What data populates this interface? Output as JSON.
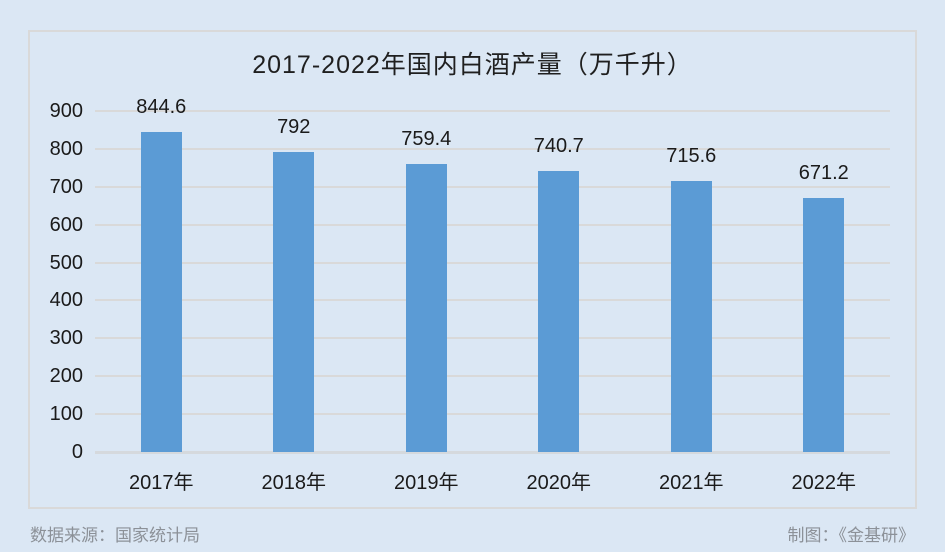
{
  "page": {
    "background_color": "#dbe7f4"
  },
  "chart_data": {
    "type": "bar",
    "title": "2017-2022年国内白酒产量（万千升）",
    "categories": [
      "2017年",
      "2018年",
      "2019年",
      "2020年",
      "2021年",
      "2022年"
    ],
    "values": [
      844.6,
      792,
      759.4,
      740.7,
      715.6,
      671.2
    ],
    "value_labels": [
      "844.6",
      "792",
      "759.4",
      "740.7",
      "715.6",
      "671.2"
    ],
    "xlabel": "",
    "ylabel": "",
    "ylim": [
      0,
      900
    ],
    "ytick_step": 100,
    "yticks": [
      900,
      800,
      700,
      600,
      500,
      400,
      300,
      200,
      100,
      0
    ],
    "grid": true,
    "legend": "none",
    "bar_color": "#5b9bd5",
    "gridline_color": "#d9d9d9",
    "frame_border_color": "#d9d9d9",
    "text_color": "#1f1f1f"
  },
  "footer": {
    "source": "数据来源：国家统计局",
    "credit": "制图：《金基研》"
  }
}
